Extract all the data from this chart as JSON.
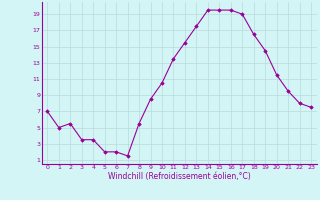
{
  "x": [
    0,
    1,
    2,
    3,
    4,
    5,
    6,
    7,
    8,
    9,
    10,
    11,
    12,
    13,
    14,
    15,
    16,
    17,
    18,
    19,
    20,
    21,
    22,
    23
  ],
  "y": [
    7,
    5,
    5.5,
    3.5,
    3.5,
    2,
    2,
    1.5,
    5.5,
    8.5,
    10.5,
    13.5,
    15.5,
    17.5,
    19.5,
    19.5,
    19.5,
    19,
    16.5,
    14.5,
    11.5,
    9.5,
    8,
    7.5
  ],
  "line_color": "#990099",
  "marker": "D",
  "marker_size": 1.8,
  "bg_color": "#d4f5f5",
  "grid_color": "#b8dada",
  "xlabel": "Windchill (Refroidissement éolien,°C)",
  "xlabel_color": "#990099",
  "tick_color": "#990099",
  "xlim": [
    -0.5,
    23.5
  ],
  "ylim": [
    0.5,
    20.5
  ],
  "yticks": [
    1,
    3,
    5,
    7,
    9,
    11,
    13,
    15,
    17,
    19
  ],
  "xticks": [
    0,
    1,
    2,
    3,
    4,
    5,
    6,
    7,
    8,
    9,
    10,
    11,
    12,
    13,
    14,
    15,
    16,
    17,
    18,
    19,
    20,
    21,
    22,
    23
  ]
}
